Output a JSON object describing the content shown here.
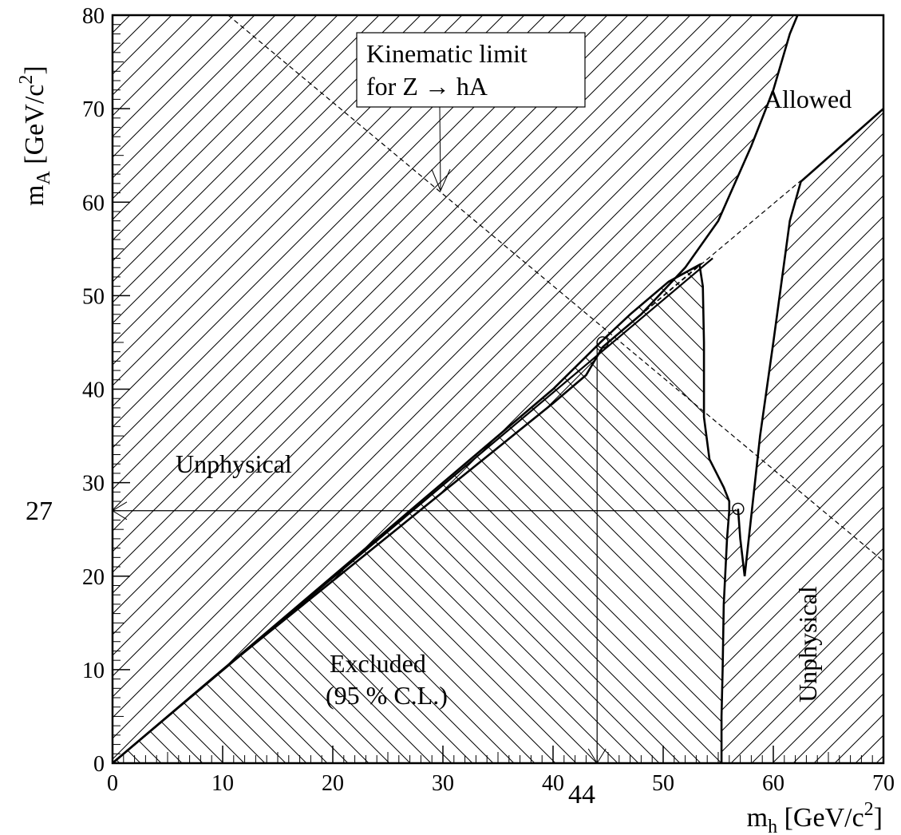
{
  "chart_data": {
    "type": "region-plot",
    "xlim": [
      0,
      70
    ],
    "ylim": [
      0,
      80
    ],
    "x_ticks": [
      0,
      10,
      20,
      30,
      40,
      50,
      60,
      70
    ],
    "y_ticks": [
      0,
      10,
      20,
      30,
      40,
      50,
      60,
      70,
      80
    ],
    "xlabel": {
      "base": "m",
      "sub": "h",
      "unit": " [GeV/c",
      "sup": "2",
      "close": "]"
    },
    "ylabel": {
      "base": "m",
      "sub": "A",
      "unit": " [GeV/c",
      "sup": "2",
      "close": "]"
    },
    "markers": {
      "x_value": 44,
      "x_label": "44",
      "y_value": 27,
      "y_label": "27"
    },
    "annotations": {
      "kinematic_line1": "Kinematic limit",
      "kinematic_line2": "for Z → hA",
      "allowed": "Allowed",
      "unphysical_left": "Unphysical",
      "unphysical_right": "Unphysical",
      "excluded_line1": "Excluded",
      "excluded_line2": "(95 % C.L.)"
    },
    "kinematic_limit": [
      [
        10.5,
        80
      ],
      [
        70,
        21.6
      ]
    ],
    "diagonal": [
      [
        0,
        0
      ],
      [
        54.5,
        54
      ]
    ],
    "upper_boundary": [
      [
        0,
        0
      ],
      [
        10,
        10
      ],
      [
        20,
        19.5
      ],
      [
        30,
        29
      ],
      [
        40,
        38.5
      ],
      [
        43,
        41.5
      ],
      [
        44.5,
        44.5
      ],
      [
        48,
        48
      ],
      [
        52,
        53
      ],
      [
        55,
        58
      ],
      [
        58,
        66
      ],
      [
        60,
        72
      ],
      [
        61.5,
        78
      ],
      [
        62.2,
        80
      ]
    ],
    "right_boundary": [
      [
        62.5,
        62.2
      ],
      [
        70,
        70
      ]
    ],
    "excluded_boundary": [
      [
        0,
        0
      ],
      [
        10,
        10
      ],
      [
        20,
        20
      ],
      [
        30,
        30
      ],
      [
        40,
        40
      ],
      [
        44.3,
        45
      ],
      [
        47,
        48
      ],
      [
        50.5,
        51.5
      ],
      [
        53.3,
        53.3
      ],
      [
        53.6,
        51
      ],
      [
        53.7,
        45
      ],
      [
        53.7,
        37
      ],
      [
        54.2,
        32.5
      ],
      [
        55.5,
        29.5
      ],
      [
        56,
        28
      ],
      [
        56,
        27
      ],
      [
        55.8,
        24
      ],
      [
        55.5,
        17
      ],
      [
        55.4,
        10
      ],
      [
        55.3,
        5
      ],
      [
        55.3,
        0
      ]
    ],
    "unphysical_right_boundary": [
      [
        56.8,
        27.2
      ],
      [
        57,
        24
      ],
      [
        57.4,
        20
      ],
      [
        58.8,
        35
      ],
      [
        60,
        45
      ],
      [
        61.5,
        58
      ],
      [
        62.5,
        62.2
      ]
    ],
    "dashed_inner": [
      [
        44.5,
        44.5
      ],
      [
        53.5,
        53.5
      ]
    ],
    "dashed_upper": [
      [
        44.5,
        44.5
      ],
      [
        62.5,
        62.3
      ]
    ],
    "circle_points": [
      [
        44.5,
        45
      ],
      [
        56.8,
        27.2
      ]
    ]
  }
}
